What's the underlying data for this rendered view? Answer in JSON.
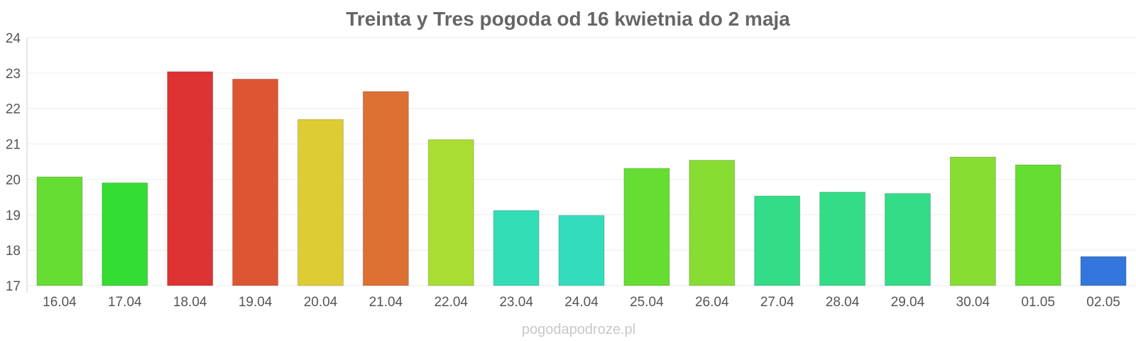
{
  "chart_data": {
    "type": "bar",
    "title": "Treinta y Tres pogoda od 16 kwietnia do 2 maja",
    "xlabel": "",
    "ylabel": "",
    "ylim": [
      17,
      24
    ],
    "yticks": [
      "17",
      "18",
      "19",
      "20",
      "21",
      "22",
      "23",
      "24"
    ],
    "grid": true,
    "legend": "none",
    "categories": [
      "16.04",
      "17.04",
      "18.04",
      "19.04",
      "20.04",
      "21.04",
      "22.04",
      "23.04",
      "24.04",
      "25.04",
      "26.04",
      "27.04",
      "28.04",
      "29.04",
      "30.04",
      "01.05",
      "02.05"
    ],
    "values": [
      20.07,
      19.9,
      23.04,
      22.83,
      21.69,
      22.48,
      21.12,
      19.12,
      18.98,
      20.31,
      20.54,
      19.53,
      19.64,
      19.6,
      20.63,
      20.41,
      17.82
    ],
    "colors": [
      "#66dd33",
      "#33dd33",
      "#dd3333",
      "#dd5533",
      "#ddcc33",
      "#dd7033",
      "#aadd33",
      "#33ddb5",
      "#33ddbb",
      "#66dd33",
      "#88dd33",
      "#33dd88",
      "#33dd88",
      "#33dd88",
      "#88dd33",
      "#66dd33",
      "#3377dd"
    ]
  },
  "credit": "pogodapodroze.pl"
}
